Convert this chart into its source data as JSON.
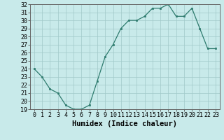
{
  "x": [
    0,
    1,
    2,
    3,
    4,
    5,
    6,
    7,
    8,
    9,
    10,
    11,
    12,
    13,
    14,
    15,
    16,
    17,
    18,
    19,
    20,
    21,
    22,
    23
  ],
  "y": [
    24,
    23,
    21.5,
    21,
    19.5,
    19,
    19,
    19.5,
    22.5,
    25.5,
    27,
    29,
    30,
    30,
    30.5,
    31.5,
    31.5,
    32,
    30.5,
    30.5,
    31.5,
    29,
    26.5,
    26.5
  ],
  "line_color": "#2e7b6e",
  "marker": "s",
  "marker_size": 2.0,
  "bg_color": "#c8eaea",
  "grid_color": "#a0c8c8",
  "xlabel": "Humidex (Indice chaleur)",
  "xlim": [
    -0.5,
    23.5
  ],
  "ylim": [
    19,
    32
  ],
  "yticks": [
    19,
    20,
    21,
    22,
    23,
    24,
    25,
    26,
    27,
    28,
    29,
    30,
    31,
    32
  ],
  "xtick_labels": [
    "0",
    "1",
    "2",
    "3",
    "4",
    "5",
    "6",
    "7",
    "8",
    "9",
    "10",
    "11",
    "12",
    "13",
    "14",
    "15",
    "16",
    "17",
    "18",
    "19",
    "20",
    "21",
    "22",
    "23"
  ],
  "xlabel_fontsize": 7.5,
  "tick_fontsize": 6.0,
  "linewidth": 0.9
}
